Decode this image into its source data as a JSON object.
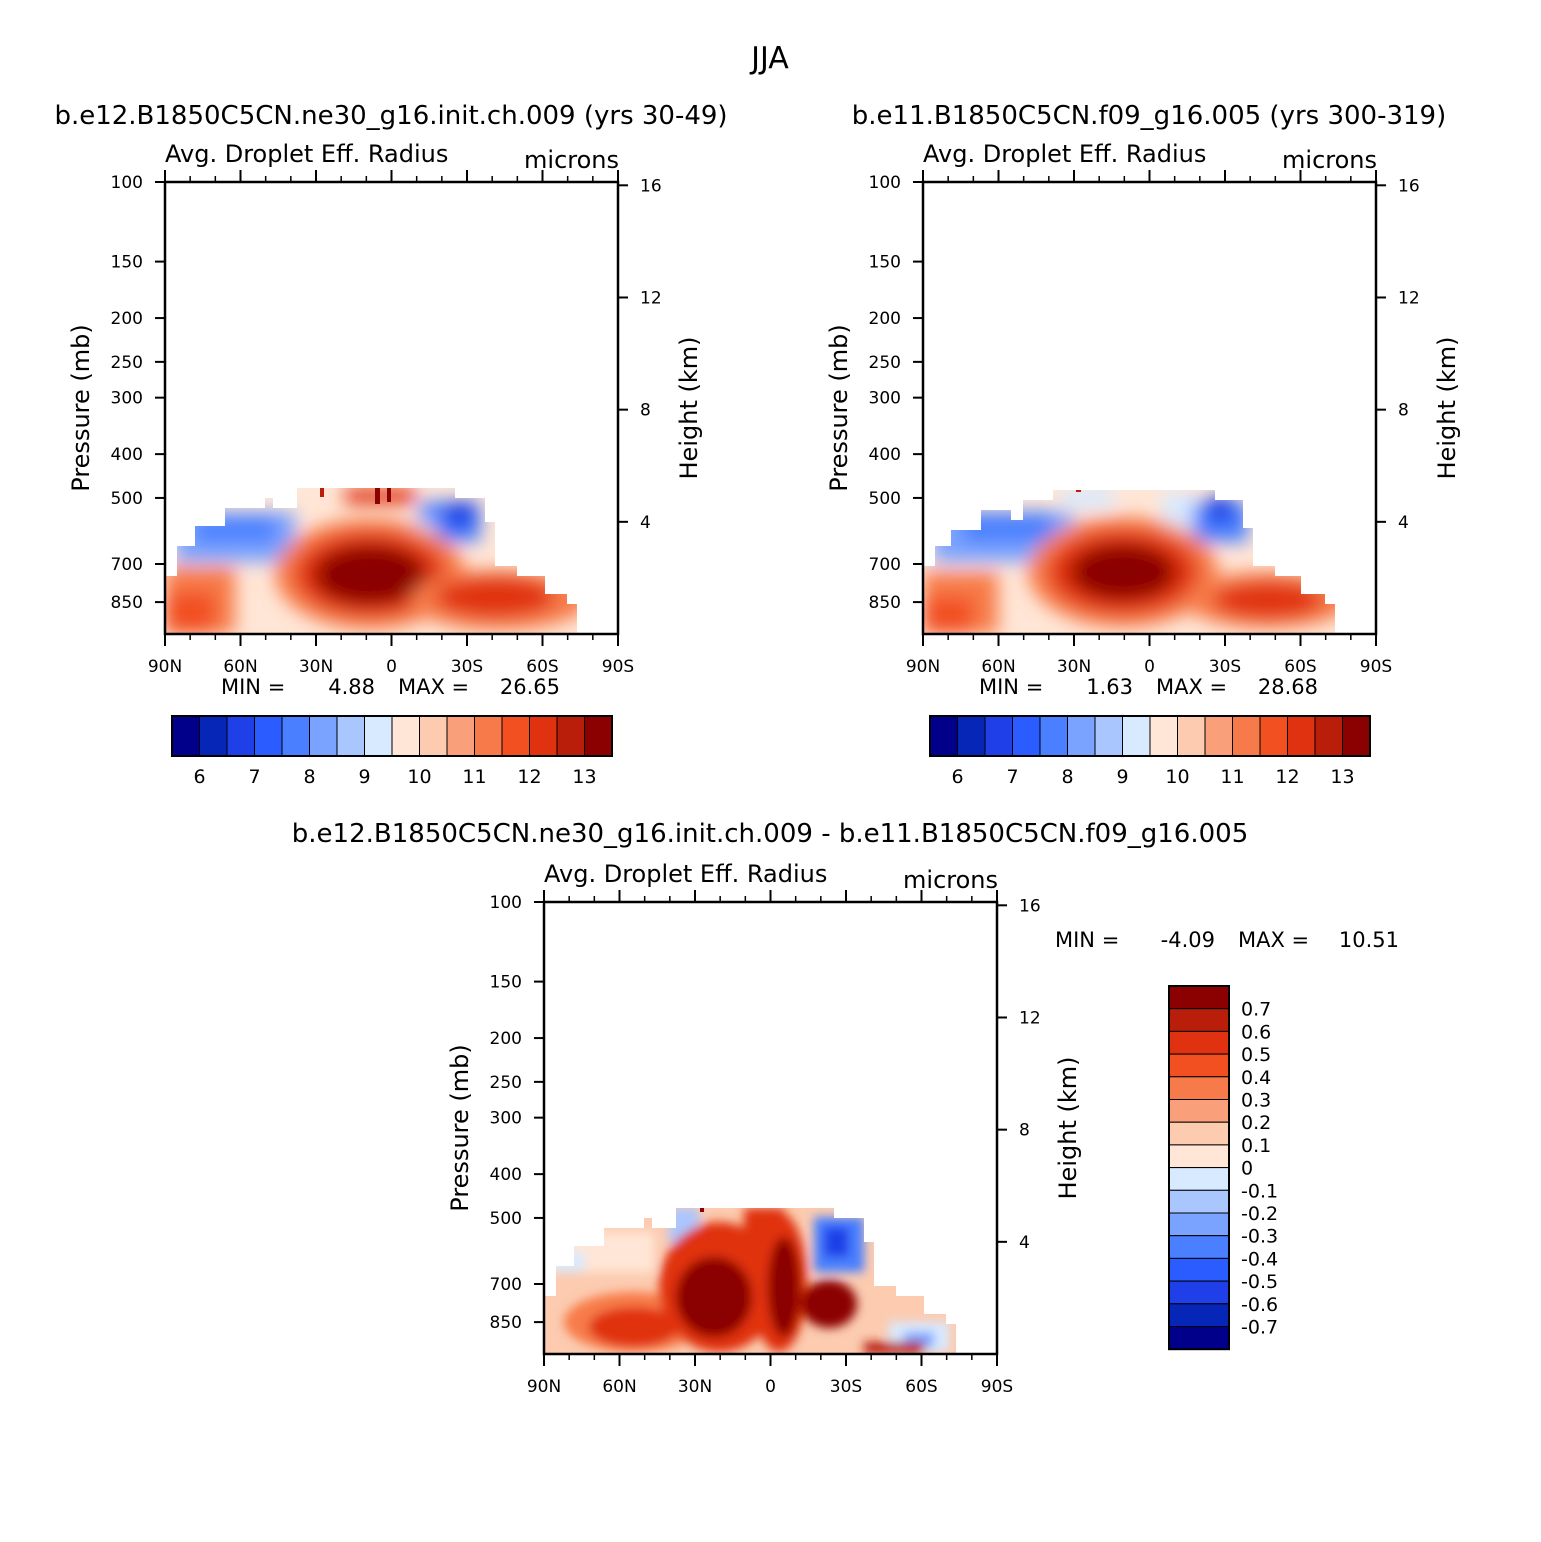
{
  "figure": {
    "title": "JJA",
    "colors": {
      "abs": [
        "#00008b",
        "#0626b8",
        "#1f3fe8",
        "#2a5cff",
        "#4a80ff",
        "#7aa3ff",
        "#aac6ff",
        "#d8eaff",
        "#ffe6d6",
        "#fccbb0",
        "#f9a07a",
        "#f77b4a",
        "#f25020",
        "#e03210",
        "#b81e0a",
        "#8b0000"
      ],
      "diff": [
        "#00008b",
        "#0626b8",
        "#1f3fe8",
        "#2a5cff",
        "#4a80ff",
        "#7aa3ff",
        "#aac6ff",
        "#d8eaff",
        "#ffe6d6",
        "#fccbb0",
        "#f9a07a",
        "#f77b4a",
        "#f25020",
        "#e03210",
        "#b81e0a",
        "#8b0000"
      ]
    }
  },
  "chart_data": [
    {
      "type": "heatmap",
      "title": "b.e12.B1850C5CN.ne30_g16.init.ch.009 (yrs 30-49)",
      "variable": "Avg. Droplet Eff. Radius",
      "units": "microns",
      "xlabel": "",
      "ylabel": "Pressure (mb)",
      "ylabel_right": "Height (km)",
      "x_ticks": [
        "90N",
        "60N",
        "30N",
        "0",
        "30S",
        "60S",
        "90S"
      ],
      "xlim": [
        90,
        -90
      ],
      "y_ticks": [
        "100",
        "150",
        "200",
        "250",
        "300",
        "400",
        "500",
        "700",
        "850"
      ],
      "y_right_ticks": [
        "16",
        "12",
        "8",
        "4"
      ],
      "ylim": [
        1000,
        100
      ],
      "y_scale": "log",
      "min_label": "MIN =",
      "min": "4.88",
      "max_label": "MAX =",
      "max": "26.65",
      "colorbar": {
        "orientation": "horizontal",
        "labels": [
          "6",
          "7",
          "8",
          "9",
          "10",
          "11",
          "12",
          "13"
        ]
      }
    },
    {
      "type": "heatmap",
      "title": "b.e11.B1850C5CN.f09_g16.005 (yrs 300-319)",
      "variable": "Avg. Droplet Eff. Radius",
      "units": "microns",
      "xlabel": "",
      "ylabel": "Pressure (mb)",
      "ylabel_right": "Height (km)",
      "x_ticks": [
        "90N",
        "60N",
        "30N",
        "0",
        "30S",
        "60S",
        "90S"
      ],
      "xlim": [
        90,
        -90
      ],
      "y_ticks": [
        "100",
        "150",
        "200",
        "250",
        "300",
        "400",
        "500",
        "700",
        "850"
      ],
      "y_right_ticks": [
        "16",
        "12",
        "8",
        "4"
      ],
      "ylim": [
        1000,
        100
      ],
      "y_scale": "log",
      "min_label": "MIN =",
      "min": "1.63",
      "max_label": "MAX =",
      "max": "28.68",
      "colorbar": {
        "orientation": "horizontal",
        "labels": [
          "6",
          "7",
          "8",
          "9",
          "10",
          "11",
          "12",
          "13"
        ]
      }
    },
    {
      "type": "heatmap",
      "title": "b.e12.B1850C5CN.ne30_g16.init.ch.009 - b.e11.B1850C5CN.f09_g16.005",
      "variable": "Avg. Droplet Eff. Radius",
      "units": "microns",
      "xlabel": "",
      "ylabel": "Pressure (mb)",
      "ylabel_right": "Height (km)",
      "x_ticks": [
        "90N",
        "60N",
        "30N",
        "0",
        "30S",
        "60S",
        "90S"
      ],
      "xlim": [
        90,
        -90
      ],
      "y_ticks": [
        "100",
        "150",
        "200",
        "250",
        "300",
        "400",
        "500",
        "700",
        "850"
      ],
      "y_right_ticks": [
        "16",
        "12",
        "8",
        "4"
      ],
      "ylim": [
        1000,
        100
      ],
      "y_scale": "log",
      "min_label": "MIN =",
      "min": "-4.09",
      "max_label": "MAX =",
      "max": "10.51",
      "colorbar": {
        "orientation": "vertical",
        "labels": [
          "0.7",
          "0.6",
          "0.5",
          "0.4",
          "0.3",
          "0.2",
          "0.1",
          "0",
          "-0.1",
          "-0.2",
          "-0.3",
          "-0.4",
          "-0.5",
          "-0.6",
          "-0.7"
        ]
      }
    }
  ]
}
